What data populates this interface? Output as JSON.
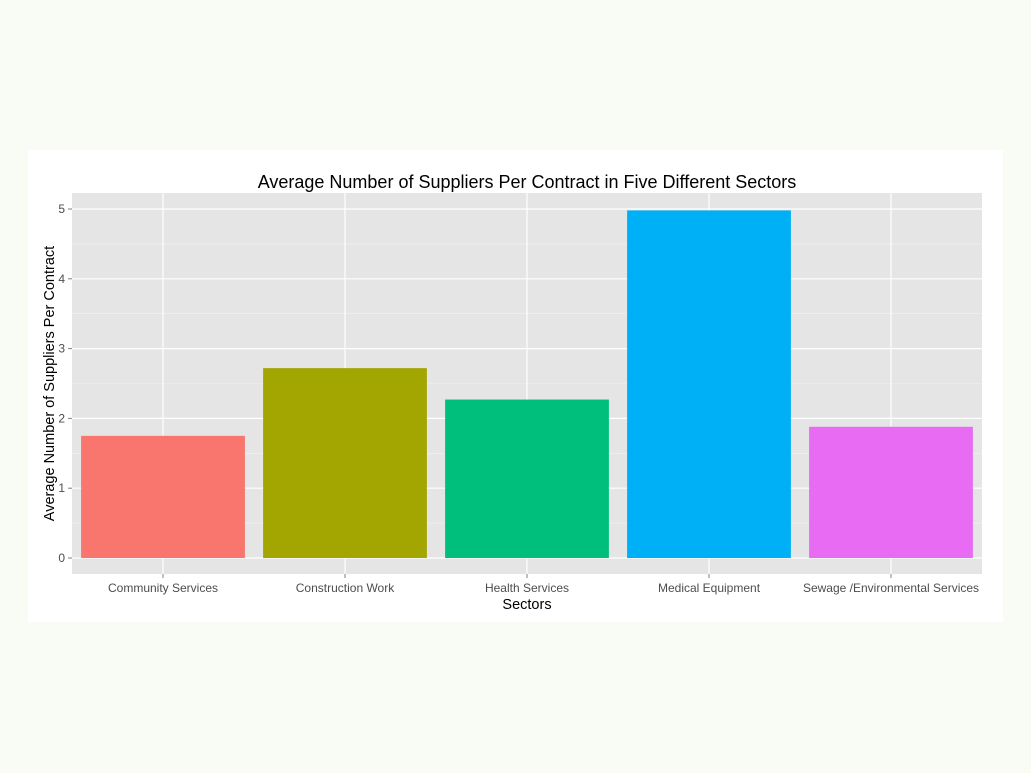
{
  "chart_data": {
    "type": "bar",
    "title": "Average Number of Suppliers Per Contract in Five Different Sectors",
    "xlabel": "Sectors",
    "ylabel": "Average Number of Suppliers Per Contract",
    "categories": [
      "Community Services",
      "Construction Work",
      "Health Services",
      "Medical Equipment",
      "Sewage /Environmental Services"
    ],
    "values": [
      1.75,
      2.72,
      2.27,
      4.98,
      1.88
    ],
    "colors": [
      "#f8766d",
      "#a3a500",
      "#00bf7d",
      "#00b0f6",
      "#e76bf3"
    ],
    "ylim": [
      0,
      5.2
    ],
    "yticks": [
      "0",
      "1",
      "2",
      "3",
      "4",
      "5"
    ],
    "grid": true,
    "legend": "none"
  }
}
